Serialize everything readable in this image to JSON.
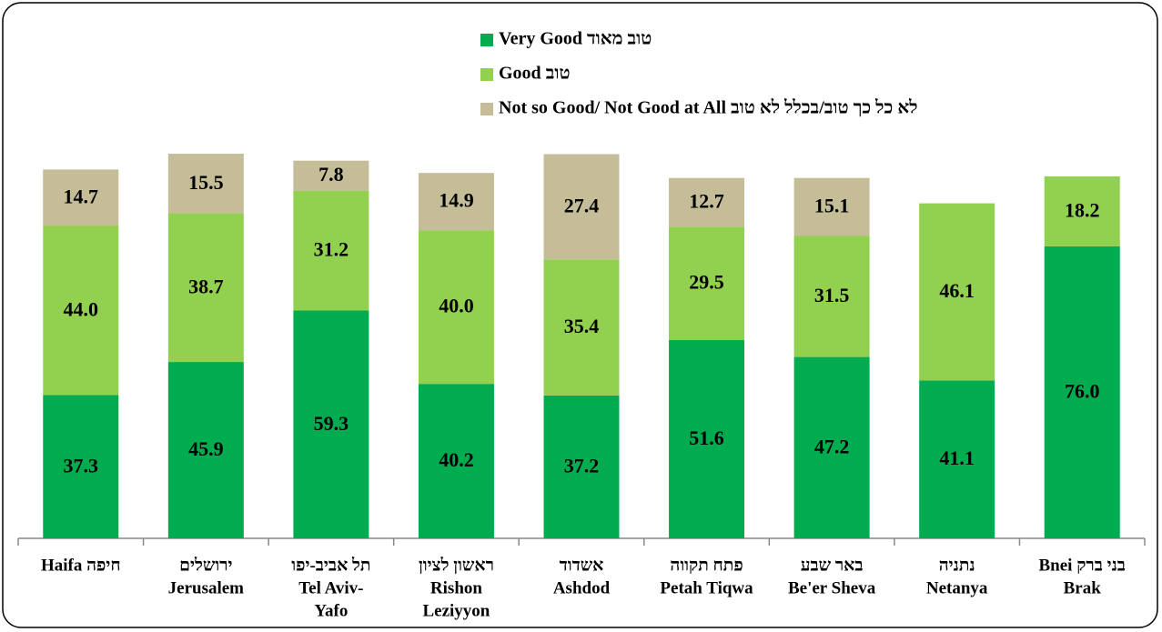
{
  "chart_data": {
    "type": "stacked-bar",
    "categories": [
      [
        "Haifa חיפה"
      ],
      [
        "ירושלים",
        "Jerusalem"
      ],
      [
        "תל אביב-יפו",
        "Tel Aviv-",
        "Yafo"
      ],
      [
        "ראשון לציון",
        "Rishon",
        "Leziyyon"
      ],
      [
        "אשדוד",
        "Ashdod"
      ],
      [
        "פתח תקווה",
        "Petah Tiqwa"
      ],
      [
        "באר שבע",
        "Be'er Sheva"
      ],
      [
        "נתניה",
        "Netanya"
      ],
      [
        "Bnei  בני ברק",
        "Brak"
      ]
    ],
    "series": [
      {
        "name": "Very Good טוב מאוד",
        "color": "#00ac4f",
        "values": [
          37.3,
          45.9,
          59.3,
          40.2,
          37.2,
          51.6,
          47.2,
          41.1,
          76.0
        ],
        "value_labels": [
          "37.3",
          "45.9",
          "59.3",
          "40.2",
          "37.2",
          "51.6",
          "47.2",
          "41.1",
          "76.0"
        ]
      },
      {
        "name": "Good טוב",
        "color": "#92d050",
        "values": [
          44.0,
          38.7,
          31.2,
          40.0,
          35.4,
          29.5,
          31.5,
          46.1,
          18.2
        ],
        "value_labels": [
          "44.0",
          "38.7",
          "31.2",
          "40.0",
          "35.4",
          "29.5",
          "31.5",
          "46.1",
          "18.2"
        ]
      },
      {
        "name": "Not so Good/ Not Good at All לא כל כך טוב/בכלל לא טוב",
        "color": "#c4bd97",
        "values": [
          14.7,
          15.5,
          7.8,
          14.9,
          27.4,
          12.7,
          15.1,
          null,
          null
        ],
        "value_labels": [
          "14.7",
          "15.5",
          "7.8",
          "14.9",
          "27.4",
          "12.7",
          "15.1",
          null,
          null
        ]
      }
    ],
    "ylim": [
      0,
      100
    ]
  }
}
